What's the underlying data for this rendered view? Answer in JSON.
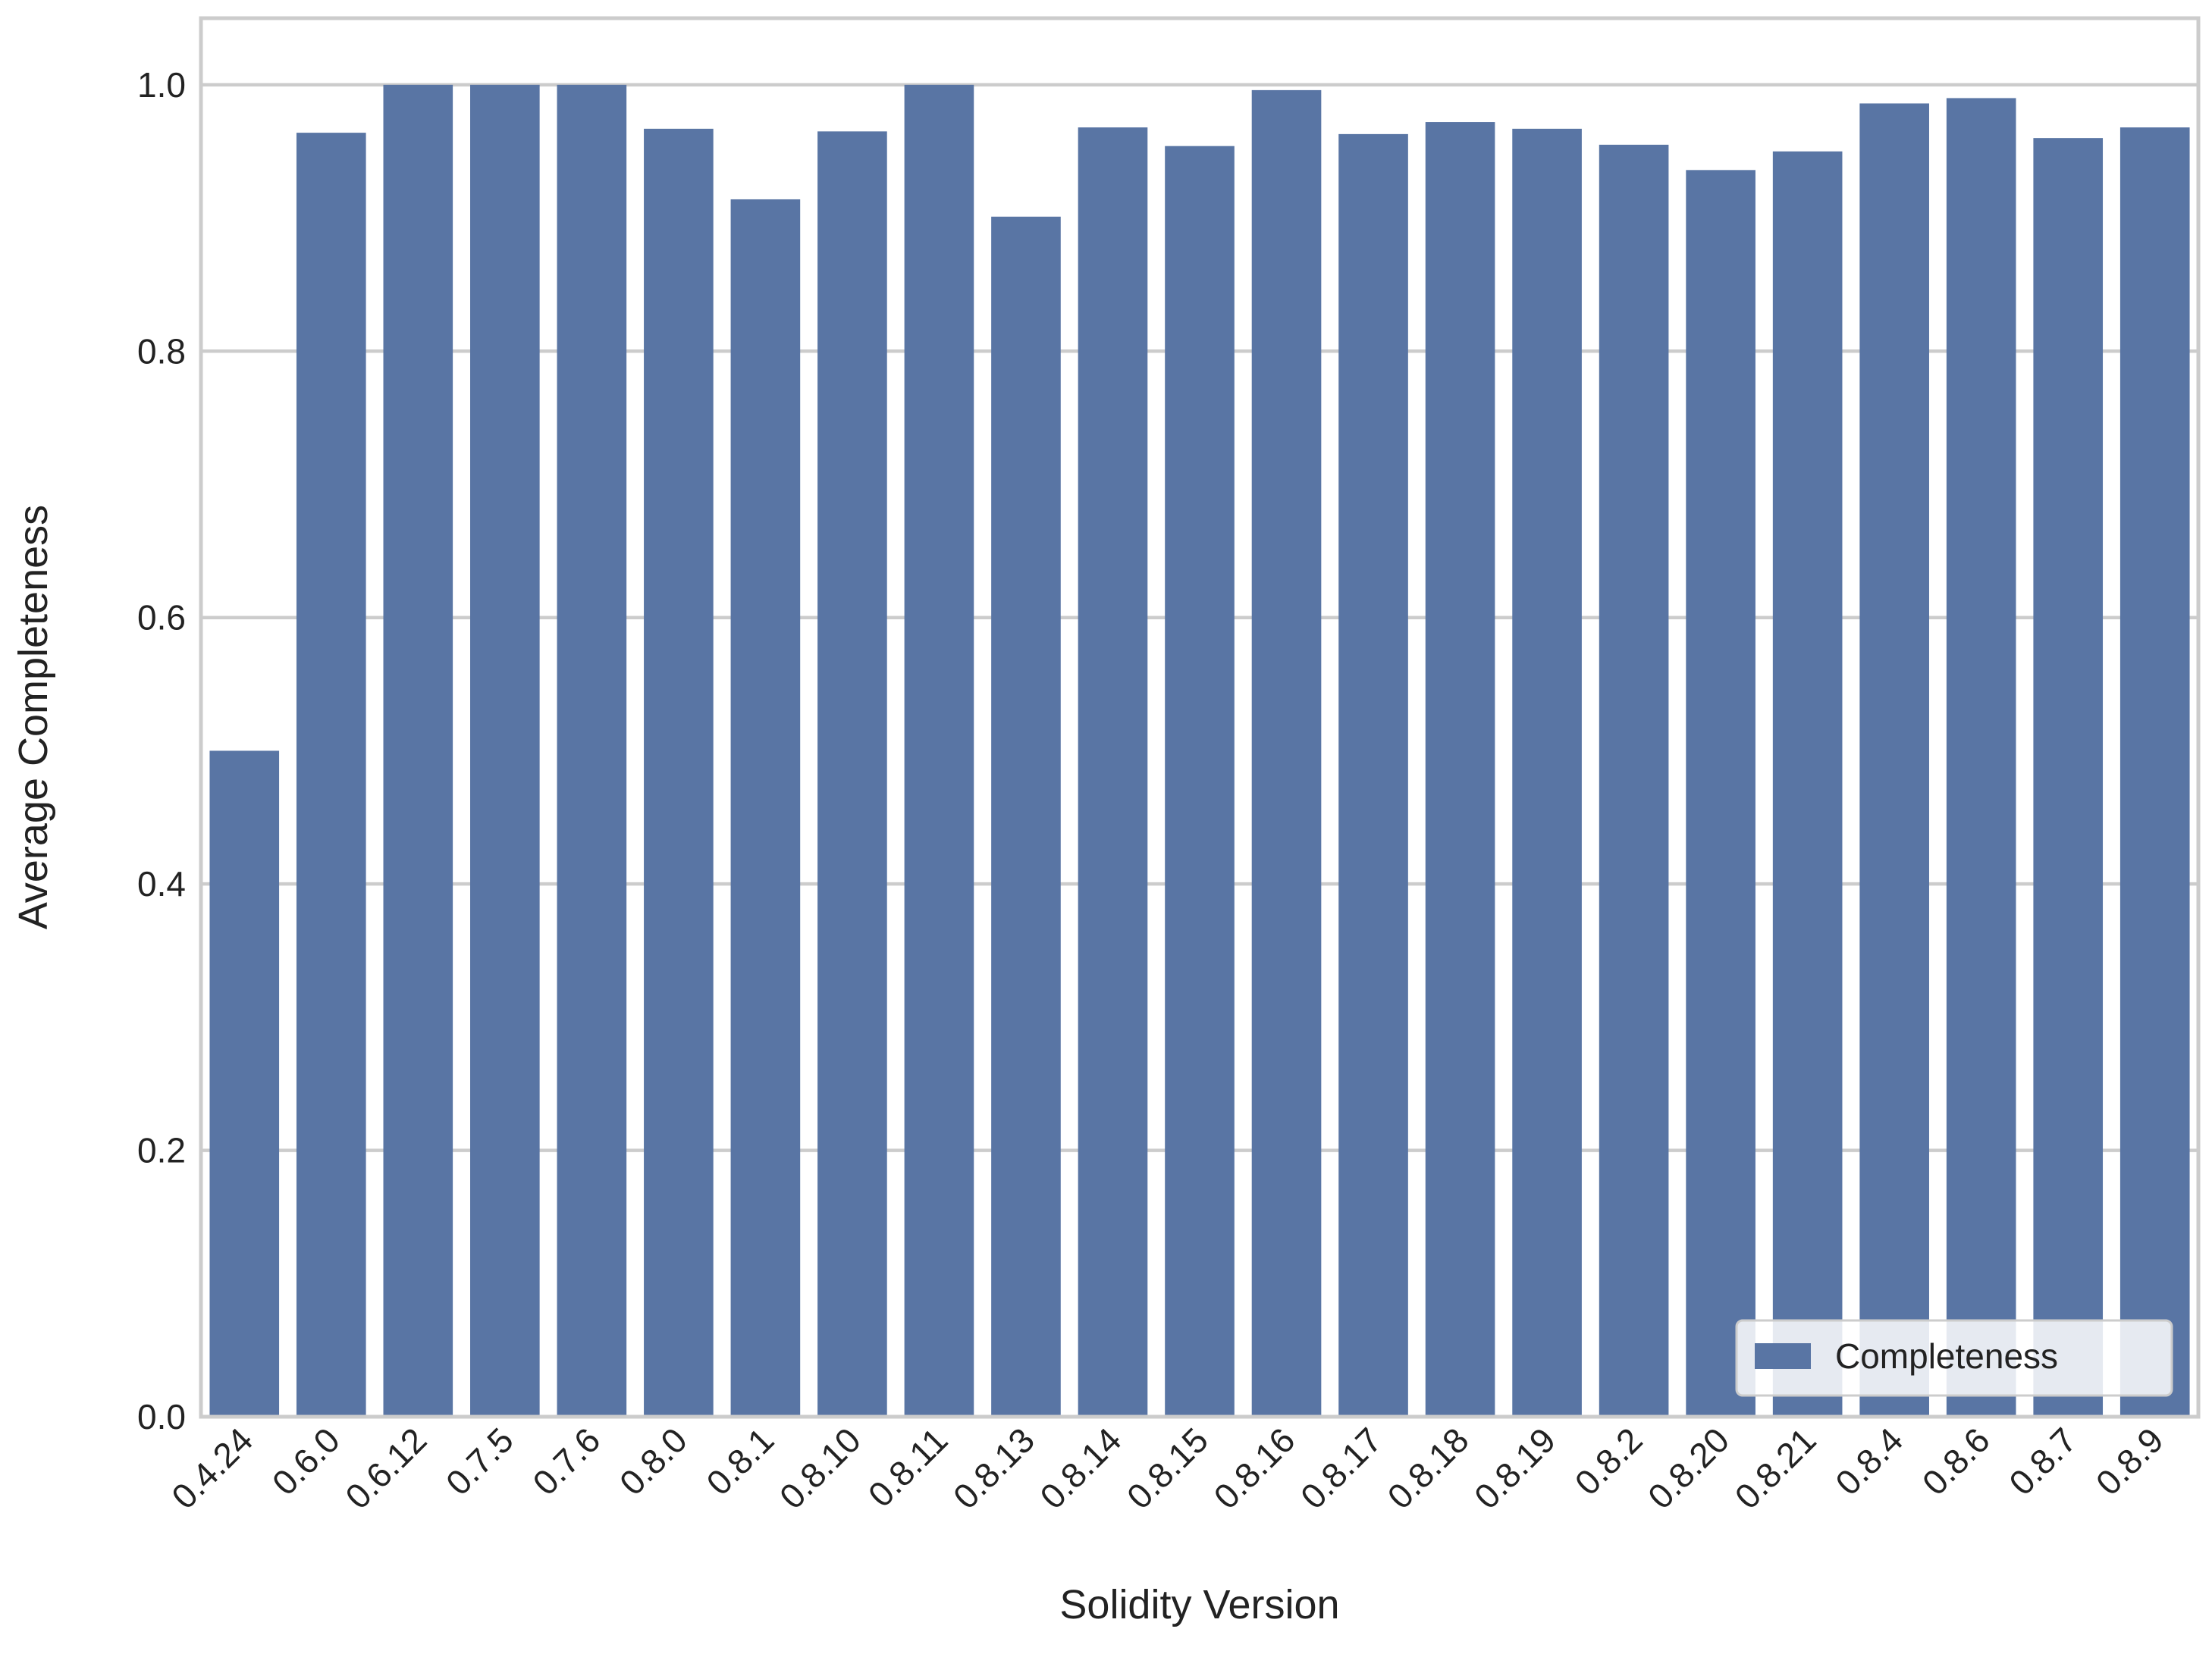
{
  "chart_data": {
    "type": "bar",
    "x_label": "Solidity Version",
    "y_label": "Average Completeness",
    "categories": [
      "0.4.24",
      "0.6.0",
      "0.6.12",
      "0.7.5",
      "0.7.6",
      "0.8.0",
      "0.8.1",
      "0.8.10",
      "0.8.11",
      "0.8.13",
      "0.8.14",
      "0.8.15",
      "0.8.16",
      "0.8.17",
      "0.8.18",
      "0.8.19",
      "0.8.2",
      "0.8.20",
      "0.8.21",
      "0.8.4",
      "0.8.6",
      "0.8.7",
      "0.8.9"
    ],
    "series": [
      {
        "name": "Completeness",
        "color": "#5975a4",
        "values": [
          0.5,
          0.964,
          1.0,
          1.0,
          1.0,
          0.967,
          0.914,
          0.965,
          1.0,
          0.901,
          0.968,
          0.954,
          0.996,
          0.963,
          0.972,
          0.967,
          0.955,
          0.936,
          0.95,
          0.986,
          0.99,
          0.96,
          0.968
        ]
      }
    ],
    "ylim": [
      0,
      1.05
    ],
    "yticks": [
      {
        "value": 0,
        "label": "0.0"
      },
      0.2,
      0.4,
      0.6,
      0.8,
      {
        "value": 1,
        "label": "1.0"
      }
    ],
    "grid": true,
    "legend": "lower right"
  }
}
